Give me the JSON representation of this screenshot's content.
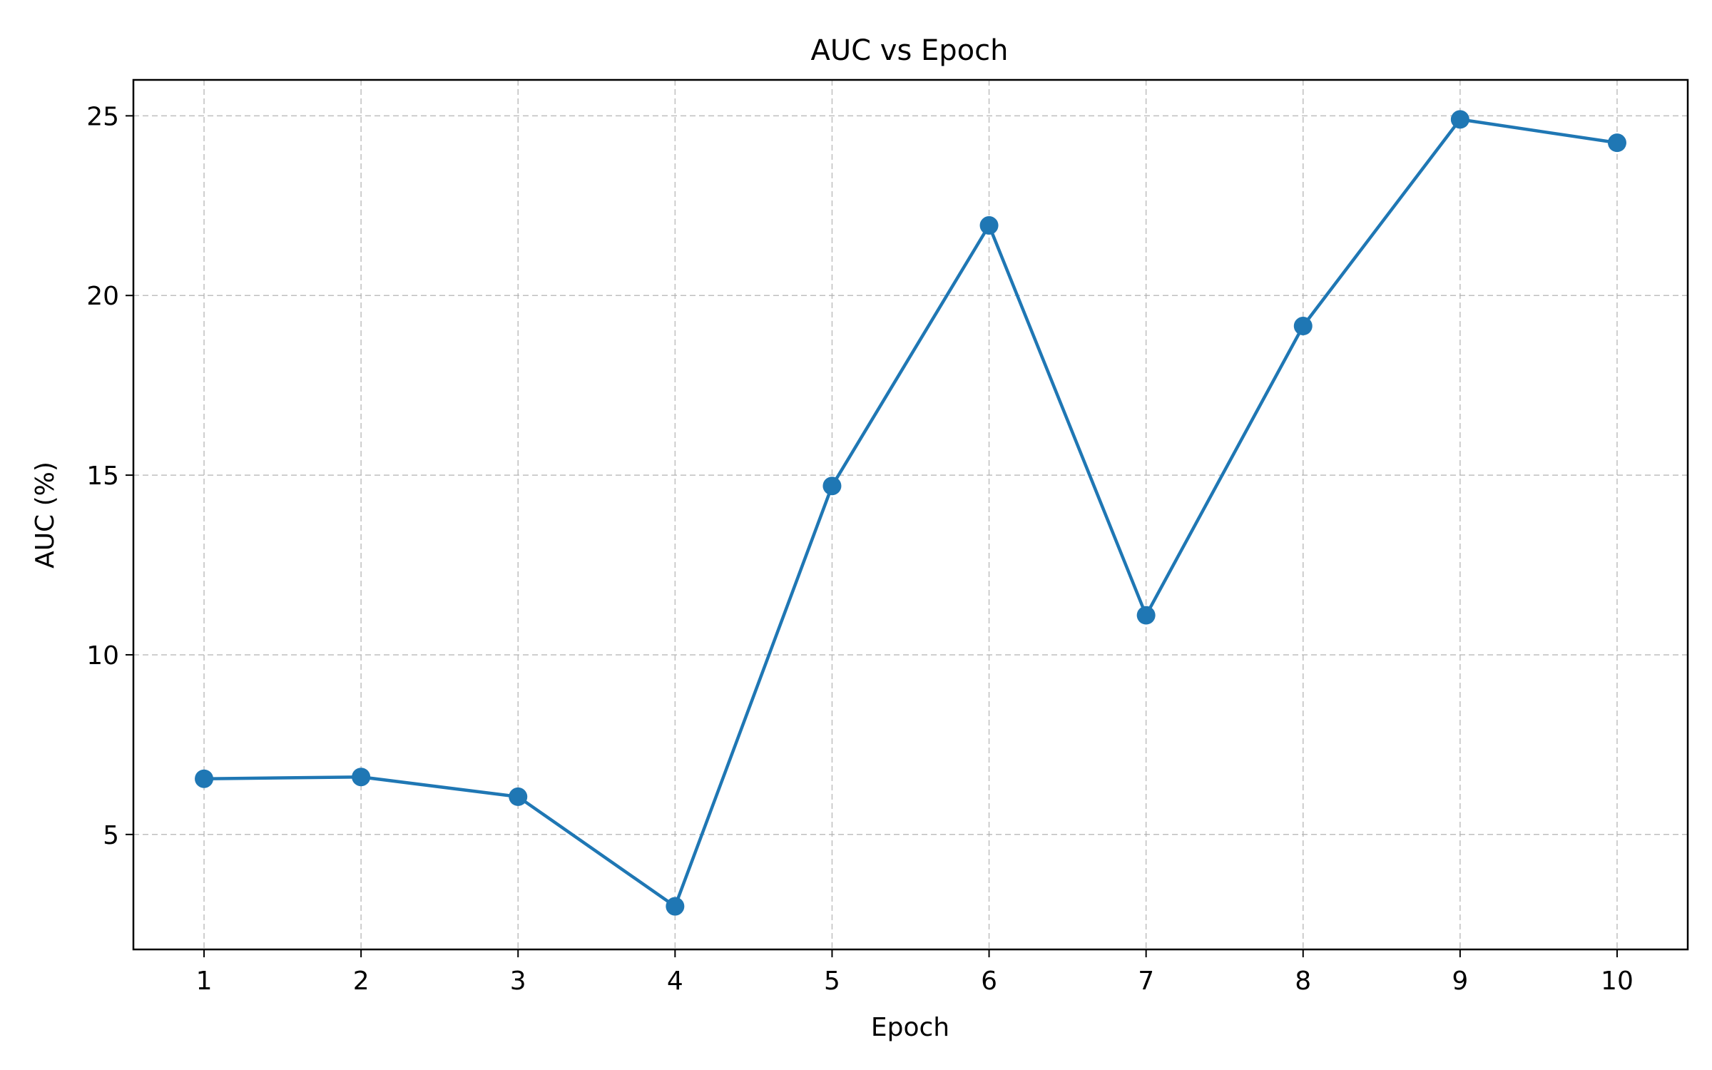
{
  "chart_data": {
    "type": "line",
    "title": "AUC vs Epoch",
    "xlabel": "Epoch",
    "ylabel": "AUC (%)",
    "x": [
      1,
      2,
      3,
      4,
      5,
      6,
      7,
      8,
      9,
      10
    ],
    "xticks": [
      "1",
      "2",
      "3",
      "4",
      "5",
      "6",
      "7",
      "8",
      "9",
      "10"
    ],
    "yticks": [
      5,
      10,
      15,
      20,
      25
    ],
    "xlim": [
      0.55,
      10.45
    ],
    "ylim": [
      1.8,
      26.0
    ],
    "grid": true,
    "series": [
      {
        "values": [
          6.55,
          6.6,
          6.05,
          3.0,
          14.7,
          21.95,
          11.1,
          19.15,
          24.9,
          24.25
        ],
        "color": "#1f77b4",
        "marker": "circle"
      }
    ]
  }
}
